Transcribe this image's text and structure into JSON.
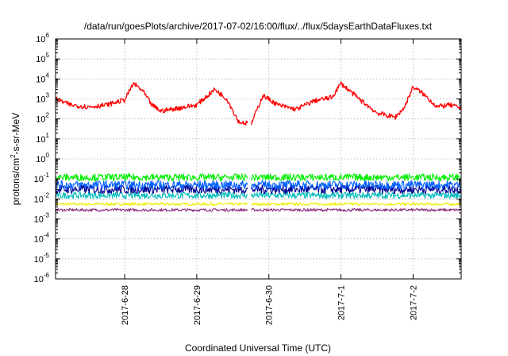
{
  "chart_data": {
    "type": "line",
    "title": "/data/run/goesPlots/archive/2017-07-02/16:00/flux/../flux/5daysEarthDataFluxes.txt",
    "xlabel": "Coordinated Universal Time (UTC)",
    "ylabel": "protons/cm2-s-sr-MeV",
    "ylabel_parts": {
      "pre": "protons/cm",
      "sup": "2",
      "post": "-s-sr-MeV"
    },
    "yscale": "log",
    "ylim": [
      1e-06,
      1000000.0
    ],
    "y_ticks": [
      {
        "exp": "-6"
      },
      {
        "exp": "-5"
      },
      {
        "exp": "-4"
      },
      {
        "exp": "-3"
      },
      {
        "exp": "-2"
      },
      {
        "exp": "-1"
      },
      {
        "exp": "0"
      },
      {
        "exp": "1"
      },
      {
        "exp": "2"
      },
      {
        "exp": "3"
      },
      {
        "exp": "4"
      },
      {
        "exp": "5"
      },
      {
        "exp": "6"
      }
    ],
    "y_tick_base": "10",
    "xlim": [
      "2017-06-27 01:00",
      "2017-07-02 16:00"
    ],
    "x_ticks": [
      "2017-6-28",
      "2017-6-29",
      "2017-6-30",
      "2017-7-1",
      "2017-7-2"
    ],
    "grid": true,
    "data_gap": [
      "2017-06-29 17:00",
      "2017-06-29 18:00"
    ],
    "series": [
      {
        "color": "#ff0000",
        "x": [
          "2017-06-27 01:00",
          "2017-06-27 06:00",
          "2017-06-27 12:00",
          "2017-06-27 18:00",
          "2017-06-28 00:00",
          "2017-06-28 03:00",
          "2017-06-28 06:00",
          "2017-06-28 09:00",
          "2017-06-28 12:00",
          "2017-06-28 18:00",
          "2017-06-29 00:00",
          "2017-06-29 06:00",
          "2017-06-29 10:00",
          "2017-06-29 14:00",
          "2017-06-29 17:00",
          "2017-06-29 18:00",
          "2017-06-29 22:00",
          "2017-06-30 03:00",
          "2017-06-30 09:00",
          "2017-06-30 15:00",
          "2017-06-30 21:00",
          "2017-07-01 00:00",
          "2017-07-01 06:00",
          "2017-07-01 12:00",
          "2017-07-01 18:00",
          "2017-07-01 21:00",
          "2017-07-02 00:00",
          "2017-07-02 03:00",
          "2017-07-02 08:00",
          "2017-07-02 12:00",
          "2017-07-02 16:00"
        ],
        "y": [
          1000,
          500,
          400,
          500,
          900,
          6000,
          2500,
          500,
          250,
          350,
          500,
          3000,
          1000,
          70,
          60,
          50,
          1500,
          500,
          300,
          800,
          1200,
          6000,
          1000,
          200,
          120,
          350,
          4000,
          2000,
          400,
          500,
          350
        ]
      },
      {
        "color": "#00ee00",
        "x": [
          "2017-06-27 01:00",
          "2017-07-02 16:00"
        ],
        "y": [
          0.12,
          0.12
        ]
      },
      {
        "color": "#0060ff",
        "x": [
          "2017-06-27 01:00",
          "2017-07-02 16:00"
        ],
        "y": [
          0.05,
          0.05
        ]
      },
      {
        "color": "#000090",
        "x": [
          "2017-06-27 01:00",
          "2017-07-02 16:00"
        ],
        "y": [
          0.03,
          0.03
        ]
      },
      {
        "color": "#00bcbc",
        "x": [
          "2017-06-27 01:00",
          "2017-07-02 16:00"
        ],
        "y": [
          0.015,
          0.015
        ]
      },
      {
        "color": "#eeee00",
        "x": [
          "2017-06-27 01:00",
          "2017-07-02 16:00"
        ],
        "y": [
          0.0055,
          0.0055
        ]
      },
      {
        "color": "#8b2a7e",
        "x": [
          "2017-06-27 01:00",
          "2017-07-02 16:00"
        ],
        "y": [
          0.0028,
          0.0028
        ]
      }
    ]
  }
}
